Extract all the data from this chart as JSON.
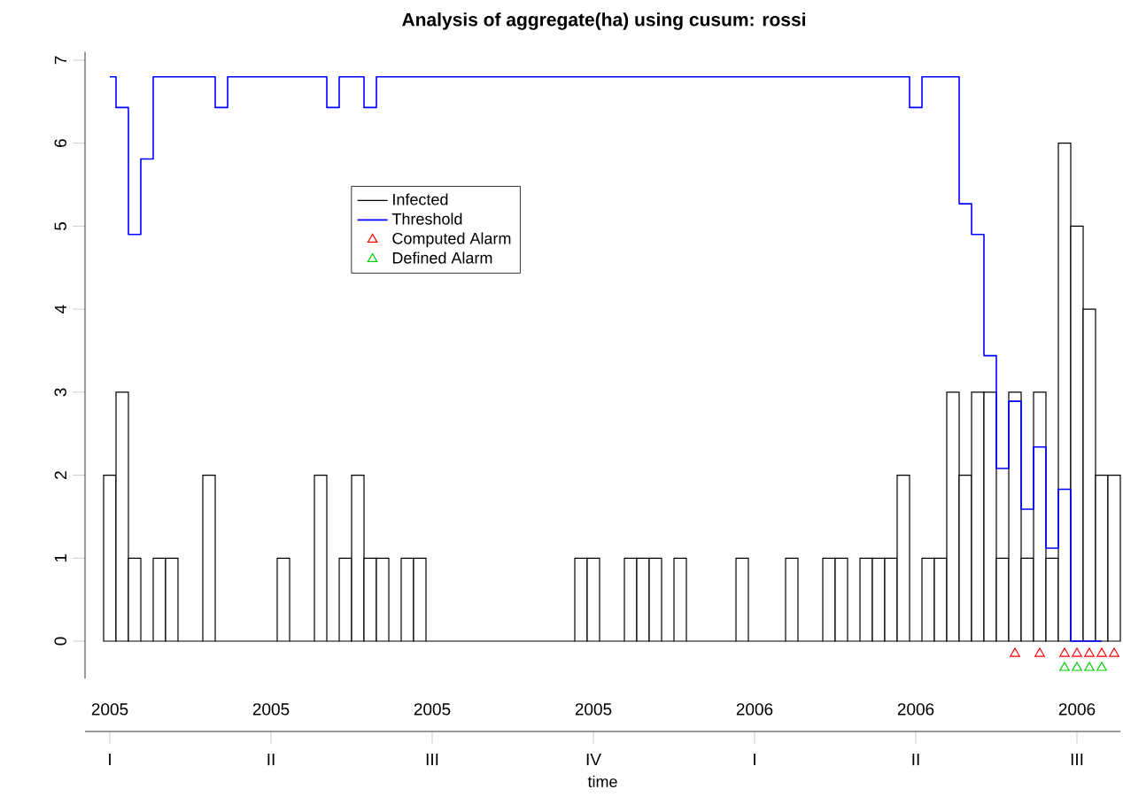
{
  "chart_data": {
    "type": "bar",
    "title": "Analysis of aggregate(ha) using cusum: rossi",
    "xlabel": "time",
    "categories": [
      "I",
      null,
      null,
      null,
      null,
      null,
      null,
      null,
      null,
      null,
      null,
      null,
      null,
      "II",
      null,
      null,
      null,
      null,
      null,
      null,
      null,
      null,
      null,
      null,
      null,
      null,
      "III",
      null,
      null,
      null,
      null,
      null,
      null,
      null,
      null,
      null,
      null,
      null,
      null,
      "IV",
      null,
      null,
      null,
      null,
      null,
      null,
      null,
      null,
      null,
      null,
      null,
      null,
      "I",
      null,
      null,
      null,
      null,
      null,
      null,
      null,
      null,
      null,
      null,
      null,
      null,
      "II",
      null,
      null,
      null,
      null,
      null,
      null,
      null,
      null,
      null,
      null,
      null,
      null,
      "III",
      null,
      null,
      null
    ],
    "annotations": [
      "2005",
      "2005",
      "2005",
      "2005",
      "2006",
      "2006",
      "2006"
    ],
    "ylim": [
      -0.45,
      7.1
    ],
    "yticks": [
      0,
      1,
      2,
      3,
      4,
      5,
      6,
      7
    ],
    "legend": "top left",
    "series": [
      {
        "name": "Infected",
        "color": "#000000",
        "values": [
          2,
          3,
          1,
          0,
          1,
          1,
          0,
          0,
          2,
          0,
          0,
          0,
          0,
          0,
          1,
          0,
          0,
          2,
          0,
          1,
          2,
          1,
          1,
          0,
          1,
          1,
          0,
          0,
          0,
          0,
          0,
          0,
          0,
          0,
          0,
          0,
          0,
          0,
          1,
          1,
          0,
          0,
          1,
          1,
          1,
          0,
          1,
          0,
          0,
          0,
          0,
          1,
          0,
          0,
          0,
          1,
          0,
          0,
          1,
          1,
          0,
          1,
          1,
          1,
          2,
          0,
          1,
          1,
          3,
          2,
          3,
          3,
          1,
          3,
          1,
          3,
          1,
          6,
          5,
          4,
          2,
          2
        ]
      },
      {
        "name": "Threshold",
        "type": "step",
        "color": "#0000ff",
        "values": [
          6.8,
          6.43,
          4.9,
          5.81,
          6.8,
          6.8,
          6.8,
          6.8,
          6.8,
          6.43,
          6.8,
          6.8,
          6.8,
          6.8,
          6.8,
          6.8,
          6.8,
          6.8,
          6.43,
          6.8,
          6.8,
          6.43,
          6.8,
          6.8,
          6.8,
          6.8,
          6.8,
          6.8,
          6.8,
          6.8,
          6.8,
          6.8,
          6.8,
          6.8,
          6.8,
          6.8,
          6.8,
          6.8,
          6.8,
          6.8,
          6.8,
          6.8,
          6.8,
          6.8,
          6.8,
          6.8,
          6.8,
          6.8,
          6.8,
          6.8,
          6.8,
          6.8,
          6.8,
          6.8,
          6.8,
          6.8,
          6.8,
          6.8,
          6.8,
          6.8,
          6.8,
          6.8,
          6.8,
          6.8,
          6.8,
          6.43,
          6.8,
          6.8,
          6.8,
          5.27,
          4.9,
          3.44,
          2.08,
          2.89,
          1.59,
          2.34,
          1.12,
          1.83,
          0,
          0,
          0,
          null
        ]
      },
      {
        "name": "Computed Alarm",
        "type": "scatter",
        "marker": "triangle",
        "color": "#ff0000",
        "values": [
          null,
          null,
          null,
          null,
          null,
          null,
          null,
          null,
          null,
          null,
          null,
          null,
          null,
          null,
          null,
          null,
          null,
          null,
          null,
          null,
          null,
          null,
          null,
          null,
          null,
          null,
          null,
          null,
          null,
          null,
          null,
          null,
          null,
          null,
          null,
          null,
          null,
          null,
          null,
          null,
          null,
          null,
          null,
          null,
          null,
          null,
          null,
          null,
          null,
          null,
          null,
          null,
          null,
          null,
          null,
          null,
          null,
          null,
          null,
          null,
          null,
          null,
          null,
          null,
          null,
          null,
          null,
          null,
          null,
          null,
          null,
          null,
          null,
          -0.15,
          null,
          -0.15,
          null,
          -0.15,
          -0.15,
          -0.15,
          -0.15,
          -0.15
        ]
      },
      {
        "name": "Defined Alarm",
        "type": "scatter",
        "marker": "triangle",
        "color": "#00cd00",
        "values": [
          null,
          null,
          null,
          null,
          null,
          null,
          null,
          null,
          null,
          null,
          null,
          null,
          null,
          null,
          null,
          null,
          null,
          null,
          null,
          null,
          null,
          null,
          null,
          null,
          null,
          null,
          null,
          null,
          null,
          null,
          null,
          null,
          null,
          null,
          null,
          null,
          null,
          null,
          null,
          null,
          null,
          null,
          null,
          null,
          null,
          null,
          null,
          null,
          null,
          null,
          null,
          null,
          null,
          null,
          null,
          null,
          null,
          null,
          null,
          null,
          null,
          null,
          null,
          null,
          null,
          null,
          null,
          null,
          null,
          null,
          null,
          null,
          null,
          null,
          null,
          null,
          null,
          -0.32,
          -0.32,
          -0.32,
          -0.32,
          null
        ]
      }
    ]
  }
}
